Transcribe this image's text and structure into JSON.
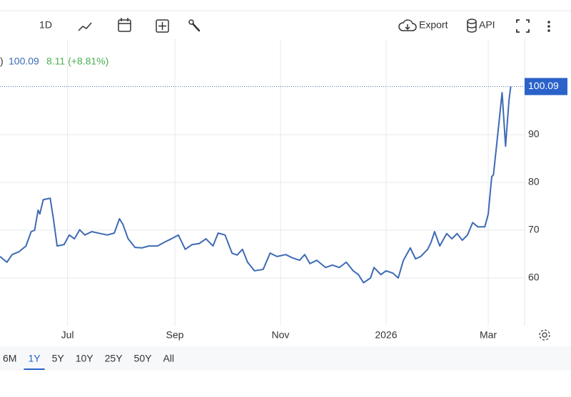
{
  "toolbar": {
    "interval": "1D",
    "export": "Export",
    "api": "API"
  },
  "legend": {
    "prefix": ")",
    "close": "100.09",
    "change": "8.11 (+8.81%)"
  },
  "ranges": {
    "items": [
      "6M",
      "1Y",
      "5Y",
      "10Y",
      "25Y",
      "50Y",
      "All"
    ],
    "selected": "1Y"
  },
  "chart_data": {
    "type": "line",
    "x": [
      -39,
      -35,
      -32,
      -28,
      -24,
      -21,
      -19,
      -17,
      -16,
      -14,
      -10,
      -8,
      -6,
      -2,
      1,
      4,
      7,
      10,
      14,
      19,
      23,
      27,
      30,
      32,
      35,
      39,
      43,
      47,
      52,
      56,
      60,
      64,
      68,
      72,
      76,
      80,
      84,
      87,
      91,
      95,
      98,
      101,
      104,
      108,
      113,
      117,
      121,
      126,
      130,
      134,
      137,
      140,
      144,
      149,
      153,
      157,
      161,
      165,
      168,
      171,
      175,
      177,
      181,
      184,
      188,
      191,
      194,
      198,
      201,
      204,
      208,
      210,
      212,
      215,
      219,
      222,
      225,
      228,
      231,
      234,
      237,
      241,
      243,
      245,
      246,
      248,
      251,
      253,
      255,
      256
    ],
    "series": [
      {
        "color": "#3d6ab5",
        "values": [
          64.5,
          63.3,
          64.9,
          65.5,
          66.7,
          69.7,
          70,
          74.2,
          73.4,
          76.4,
          76.7,
          72,
          66.7,
          67,
          69,
          68.2,
          70.1,
          69,
          69.7,
          69.3,
          69,
          69.4,
          72.4,
          71.2,
          68.2,
          66.4,
          66.3,
          66.7,
          66.7,
          67.5,
          68.2,
          69,
          66,
          67,
          67.2,
          68.2,
          66.7,
          69.4,
          69,
          65.2,
          64.8,
          66,
          63.3,
          61.5,
          61.8,
          65.2,
          64.5,
          64.9,
          64.2,
          63.7,
          64.9,
          63,
          63.7,
          62.2,
          62.7,
          62.2,
          63.3,
          61.5,
          60.7,
          59,
          60,
          62.2,
          60.7,
          61.5,
          61,
          60,
          63.7,
          66.3,
          64,
          64.5,
          66,
          67.5,
          69.7,
          66.7,
          69.3,
          68.2,
          69.3,
          67.9,
          69,
          71.6,
          70.7,
          70.7,
          73.4,
          81.2,
          81.6,
          88.4,
          98.8,
          87.6,
          97.3,
          100.09
        ]
      }
    ],
    "last_value": 100.09,
    "xlim": [
      -39,
      264
    ],
    "xticks": [
      {
        "value": 0,
        "label": "Jul"
      },
      {
        "value": 62,
        "label": "Sep"
      },
      {
        "value": 123,
        "label": "Nov"
      },
      {
        "value": 184,
        "label": "2026"
      },
      {
        "value": 243,
        "label": "Mar"
      }
    ],
    "ylim": [
      50,
      110
    ],
    "yticks": [
      60,
      70,
      80,
      90
    ],
    "grid": true
  }
}
